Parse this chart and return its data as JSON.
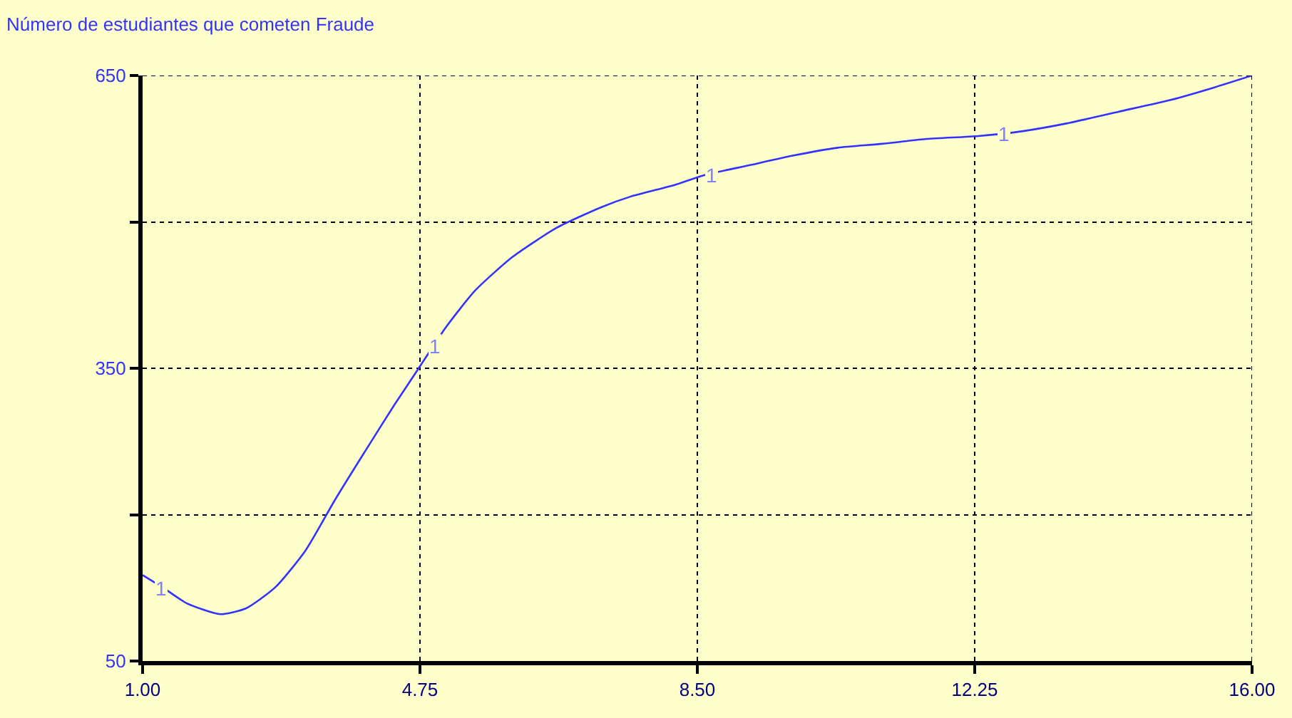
{
  "chart_data": {
    "type": "line",
    "title": "Número de estudiantes que cometen Fraude",
    "x": [
      1.0,
      1.3,
      1.6,
      2.05,
      2.4,
      2.8,
      3.2,
      3.6,
      4.05,
      4.4,
      4.75,
      5.1,
      5.5,
      6.0,
      6.6,
      7.2,
      7.6,
      8.2,
      8.6,
      9.2,
      9.8,
      10.4,
      11.0,
      11.6,
      12.3,
      12.9,
      13.5,
      14.2,
      14.9,
      15.5,
      16.0
    ],
    "series": [
      {
        "color": "#3333ff",
        "values": [
          138,
          124,
          109,
          98,
          104,
          126,
          163,
          215,
          270,
          312,
          352,
          392,
          430,
          464,
          494,
          515,
          526,
          538,
          548,
          558,
          568,
          576,
          580,
          585,
          588,
          593,
          601,
          613,
          625,
          638,
          650
        ]
      }
    ],
    "annotations": [
      {
        "text": "1",
        "x": 1.25,
        "y": 124
      },
      {
        "text": "1",
        "x": 4.95,
        "y": 372
      },
      {
        "text": "1",
        "x": 8.7,
        "y": 548
      },
      {
        "text": "1",
        "x": 12.65,
        "y": 590
      }
    ],
    "xlim": [
      1.0,
      16.0
    ],
    "xticks": [
      {
        "value": 1.0,
        "label": "1.00"
      },
      4.75,
      {
        "value": 8.5,
        "label": "8.50"
      },
      12.25,
      {
        "value": 16.0,
        "label": "16.00"
      }
    ],
    "ylim": [
      50,
      650
    ],
    "yticks": [
      50,
      {
        "value": 200,
        "label": null
      },
      350,
      {
        "value": 500,
        "label": null
      },
      650
    ],
    "grid": true,
    "marker": "none",
    "line_style": "solid"
  }
}
